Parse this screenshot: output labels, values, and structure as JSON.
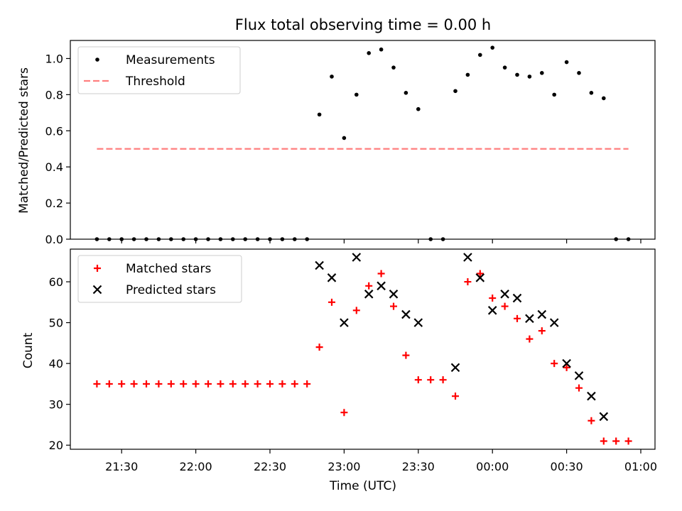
{
  "chart_data": [
    {
      "type": "scatter",
      "title": "Flux total observing time = 0.00 h",
      "ylabel": "Matched/Predicted stars",
      "ylim": [
        0,
        1.1
      ],
      "yticks": [
        "0.0",
        "0.2",
        "0.4",
        "0.6",
        "0.8",
        "1.0"
      ],
      "ytick_values": [
        0.0,
        0.2,
        0.4,
        0.6,
        0.8,
        1.0
      ],
      "legend_position": "upper-left",
      "grid": false,
      "series": [
        {
          "name": "Measurements",
          "marker": "dot",
          "color": "#000000",
          "points": [
            [
              "21:20",
              0.0
            ],
            [
              "21:25",
              0.0
            ],
            [
              "21:30",
              0.0
            ],
            [
              "21:35",
              0.0
            ],
            [
              "21:40",
              0.0
            ],
            [
              "21:45",
              0.0
            ],
            [
              "21:50",
              0.0
            ],
            [
              "21:55",
              0.0
            ],
            [
              "22:00",
              0.0
            ],
            [
              "22:05",
              0.0
            ],
            [
              "22:10",
              0.0
            ],
            [
              "22:15",
              0.0
            ],
            [
              "22:20",
              0.0
            ],
            [
              "22:25",
              0.0
            ],
            [
              "22:30",
              0.0
            ],
            [
              "22:35",
              0.0
            ],
            [
              "22:40",
              0.0
            ],
            [
              "22:45",
              0.0
            ],
            [
              "22:50",
              0.69
            ],
            [
              "22:55",
              0.9
            ],
            [
              "23:00",
              0.56
            ],
            [
              "23:05",
              0.8
            ],
            [
              "23:10",
              1.03
            ],
            [
              "23:15",
              1.05
            ],
            [
              "23:20",
              0.95
            ],
            [
              "23:25",
              0.81
            ],
            [
              "23:30",
              0.72
            ],
            [
              "23:35",
              0.0
            ],
            [
              "23:40",
              0.0
            ],
            [
              "23:45",
              0.82
            ],
            [
              "23:50",
              0.91
            ],
            [
              "23:55",
              1.02
            ],
            [
              "00:00",
              1.06
            ],
            [
              "00:05",
              0.95
            ],
            [
              "00:10",
              0.91
            ],
            [
              "00:15",
              0.9
            ],
            [
              "00:20",
              0.92
            ],
            [
              "00:25",
              0.8
            ],
            [
              "00:30",
              0.98
            ],
            [
              "00:35",
              0.92
            ],
            [
              "00:40",
              0.81
            ],
            [
              "00:45",
              0.78
            ],
            [
              "00:50",
              0.0
            ],
            [
              "00:55",
              0.0
            ]
          ]
        },
        {
          "name": "Threshold",
          "marker": "dashed-line",
          "color": "#ff7f7f",
          "points": [
            [
              "21:20",
              0.5
            ],
            [
              "00:55",
              0.5
            ]
          ]
        }
      ]
    },
    {
      "type": "scatter",
      "xlabel": "Time (UTC)",
      "ylabel": "Count",
      "ylim": [
        19,
        68
      ],
      "yticks": [
        "20",
        "30",
        "40",
        "50",
        "60"
      ],
      "ytick_values": [
        20,
        30,
        40,
        50,
        60
      ],
      "xticks": [
        "21:30",
        "22:00",
        "22:30",
        "23:00",
        "23:30",
        "00:00",
        "00:30",
        "01:00"
      ],
      "legend_position": "upper-left",
      "grid": false,
      "series": [
        {
          "name": "Matched stars",
          "marker": "plus",
          "color": "#ff0000",
          "points": [
            [
              "21:20",
              35
            ],
            [
              "21:25",
              35
            ],
            [
              "21:30",
              35
            ],
            [
              "21:35",
              35
            ],
            [
              "21:40",
              35
            ],
            [
              "21:45",
              35
            ],
            [
              "21:50",
              35
            ],
            [
              "21:55",
              35
            ],
            [
              "22:00",
              35
            ],
            [
              "22:05",
              35
            ],
            [
              "22:10",
              35
            ],
            [
              "22:15",
              35
            ],
            [
              "22:20",
              35
            ],
            [
              "22:25",
              35
            ],
            [
              "22:30",
              35
            ],
            [
              "22:35",
              35
            ],
            [
              "22:40",
              35
            ],
            [
              "22:45",
              35
            ],
            [
              "22:50",
              44
            ],
            [
              "22:55",
              55
            ],
            [
              "23:00",
              28
            ],
            [
              "23:05",
              53
            ],
            [
              "23:10",
              59
            ],
            [
              "23:15",
              62
            ],
            [
              "23:20",
              54
            ],
            [
              "23:25",
              42
            ],
            [
              "23:30",
              36
            ],
            [
              "23:35",
              36
            ],
            [
              "23:40",
              36
            ],
            [
              "23:45",
              32
            ],
            [
              "23:50",
              60
            ],
            [
              "23:55",
              62
            ],
            [
              "00:00",
              56
            ],
            [
              "00:05",
              54
            ],
            [
              "00:10",
              51
            ],
            [
              "00:15",
              46
            ],
            [
              "00:20",
              48
            ],
            [
              "00:25",
              40
            ],
            [
              "00:30",
              39
            ],
            [
              "00:35",
              34
            ],
            [
              "00:40",
              26
            ],
            [
              "00:45",
              21
            ],
            [
              "00:50",
              21
            ],
            [
              "00:55",
              21
            ]
          ]
        },
        {
          "name": "Predicted stars",
          "marker": "x",
          "color": "#000000",
          "points": [
            [
              "22:50",
              64
            ],
            [
              "22:55",
              61
            ],
            [
              "23:00",
              50
            ],
            [
              "23:05",
              66
            ],
            [
              "23:10",
              57
            ],
            [
              "23:15",
              59
            ],
            [
              "23:20",
              57
            ],
            [
              "23:25",
              52
            ],
            [
              "23:30",
              50
            ],
            [
              "23:45",
              39
            ],
            [
              "23:50",
              66
            ],
            [
              "23:55",
              61
            ],
            [
              "00:00",
              53
            ],
            [
              "00:05",
              57
            ],
            [
              "00:10",
              56
            ],
            [
              "00:15",
              51
            ],
            [
              "00:20",
              52
            ],
            [
              "00:25",
              50
            ],
            [
              "00:30",
              40
            ],
            [
              "00:35",
              37
            ],
            [
              "00:40",
              32
            ],
            [
              "00:45",
              27
            ]
          ]
        }
      ]
    }
  ]
}
